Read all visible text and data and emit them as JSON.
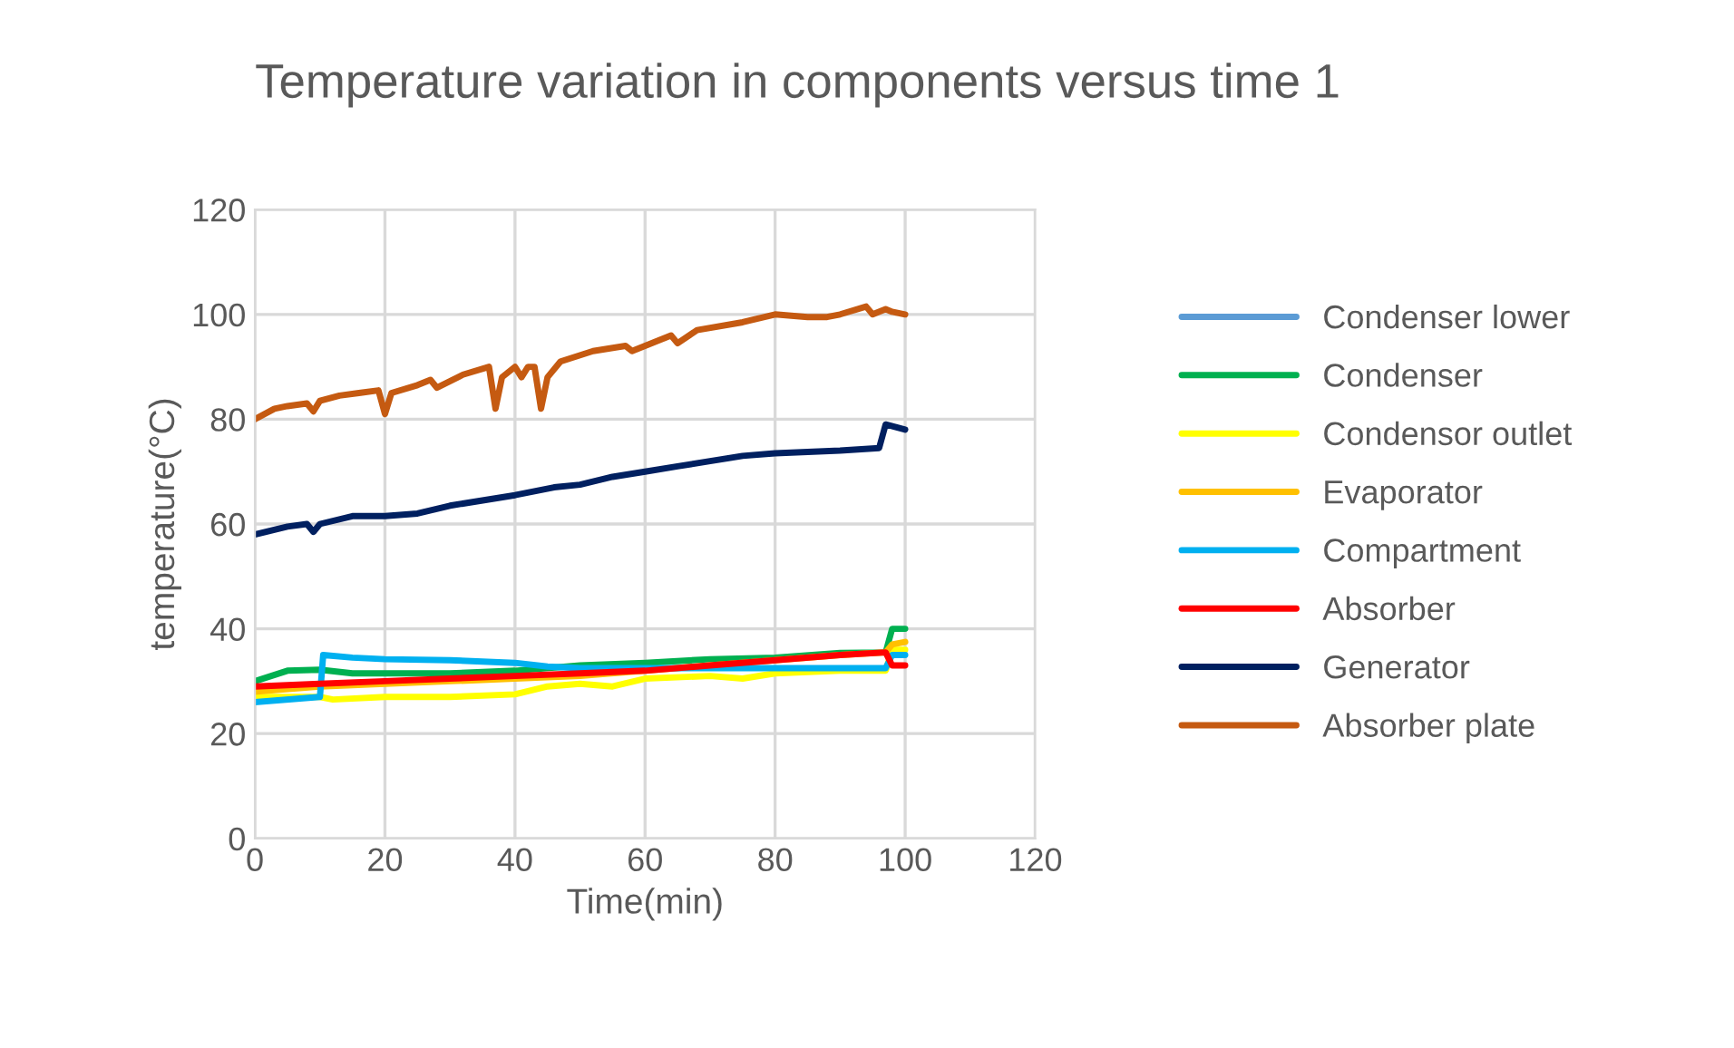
{
  "chart_data": {
    "type": "line",
    "title": "Temperature variation in components versus time 1",
    "xlabel": "Time(min)",
    "ylabel": "temperature(°C)",
    "xlim": [
      0,
      120
    ],
    "xticks": [
      0,
      20,
      40,
      60,
      80,
      100,
      120
    ],
    "ylim": [
      0,
      120
    ],
    "yticks": [
      0,
      20,
      40,
      60,
      80,
      100,
      120
    ],
    "grid": true,
    "legend": "right",
    "marker": "none",
    "line_style": "solid",
    "series": [
      {
        "name": "Condenser lower",
        "color": "#5b9bd5"
      },
      {
        "name": "Condenser",
        "color": "#00b050",
        "x": [
          0,
          5,
          10,
          15,
          20,
          30,
          40,
          50,
          60,
          70,
          80,
          90,
          97,
          98,
          100
        ],
        "values": [
          30,
          32,
          32.2,
          31.5,
          31.5,
          31.5,
          32,
          33,
          33.5,
          34.2,
          34.5,
          35.4,
          35.5,
          40,
          40
        ]
      },
      {
        "name": "Condensor outlet",
        "color": "#ffff00",
        "x": [
          0,
          10,
          12,
          20,
          30,
          40,
          45,
          50,
          55,
          60,
          70,
          75,
          80,
          90,
          97,
          98,
          100
        ],
        "values": [
          27,
          27,
          26.5,
          27,
          27,
          27.5,
          29,
          29.5,
          29,
          30.5,
          31,
          30.5,
          31.5,
          32,
          32,
          36,
          36
        ]
      },
      {
        "name": "Evaporator",
        "color": "#ffc000",
        "x": [
          0,
          10,
          20,
          30,
          40,
          50,
          60,
          70,
          80,
          90,
          97,
          98,
          100
        ],
        "values": [
          28,
          29,
          29.5,
          30,
          30.5,
          31,
          32,
          33,
          34,
          35,
          35.5,
          37,
          37.5
        ]
      },
      {
        "name": "Compartment",
        "color": "#00b0f0",
        "x": [
          0,
          10,
          10.5,
          15,
          20,
          30,
          40,
          45,
          50,
          60,
          70,
          80,
          90,
          97,
          98,
          100
        ],
        "values": [
          26,
          27,
          35,
          34.5,
          34.2,
          34,
          33.5,
          32.8,
          32.5,
          32.5,
          32.5,
          32.5,
          32.5,
          32.5,
          35,
          35
        ]
      },
      {
        "name": "Absorber",
        "color": "#ff0000",
        "x": [
          0,
          10,
          20,
          30,
          40,
          50,
          60,
          70,
          80,
          90,
          97,
          98,
          100
        ],
        "values": [
          29,
          29.5,
          30,
          30.5,
          31,
          31.5,
          32,
          33,
          34,
          35,
          35.5,
          33,
          33
        ]
      },
      {
        "name": "Generator",
        "color": "#002060",
        "x": [
          0,
          5,
          8,
          9,
          10,
          15,
          20,
          25,
          30,
          40,
          46,
          50,
          55,
          60,
          65,
          70,
          75,
          80,
          90,
          96,
          97,
          100
        ],
        "values": [
          58,
          59.5,
          60,
          58.5,
          60,
          61.5,
          61.5,
          62,
          63.5,
          65.5,
          67,
          67.5,
          69,
          70,
          71,
          72,
          73,
          73.5,
          74,
          74.5,
          79,
          78
        ]
      },
      {
        "name": "Absorber plate",
        "color": "#c55a11",
        "x": [
          0,
          3,
          5,
          8,
          9,
          10,
          13,
          16,
          19,
          20,
          21,
          25,
          27,
          28,
          32,
          36,
          37,
          38,
          40,
          41,
          42,
          43,
          44,
          45,
          47,
          52,
          57,
          58,
          62,
          64,
          65,
          68,
          75,
          80,
          85,
          88,
          90,
          94,
          95,
          97,
          98,
          100
        ],
        "values": [
          80,
          82,
          82.5,
          83,
          81.5,
          83.5,
          84.5,
          85,
          85.5,
          81,
          85,
          86.5,
          87.5,
          86,
          88.5,
          90,
          82,
          88,
          90,
          88,
          90,
          90,
          82,
          88,
          91,
          93,
          94,
          93,
          95,
          96,
          94.5,
          97,
          98.5,
          100,
          99.5,
          99.5,
          100,
          101.5,
          100,
          101,
          100.5,
          100
        ]
      }
    ]
  }
}
